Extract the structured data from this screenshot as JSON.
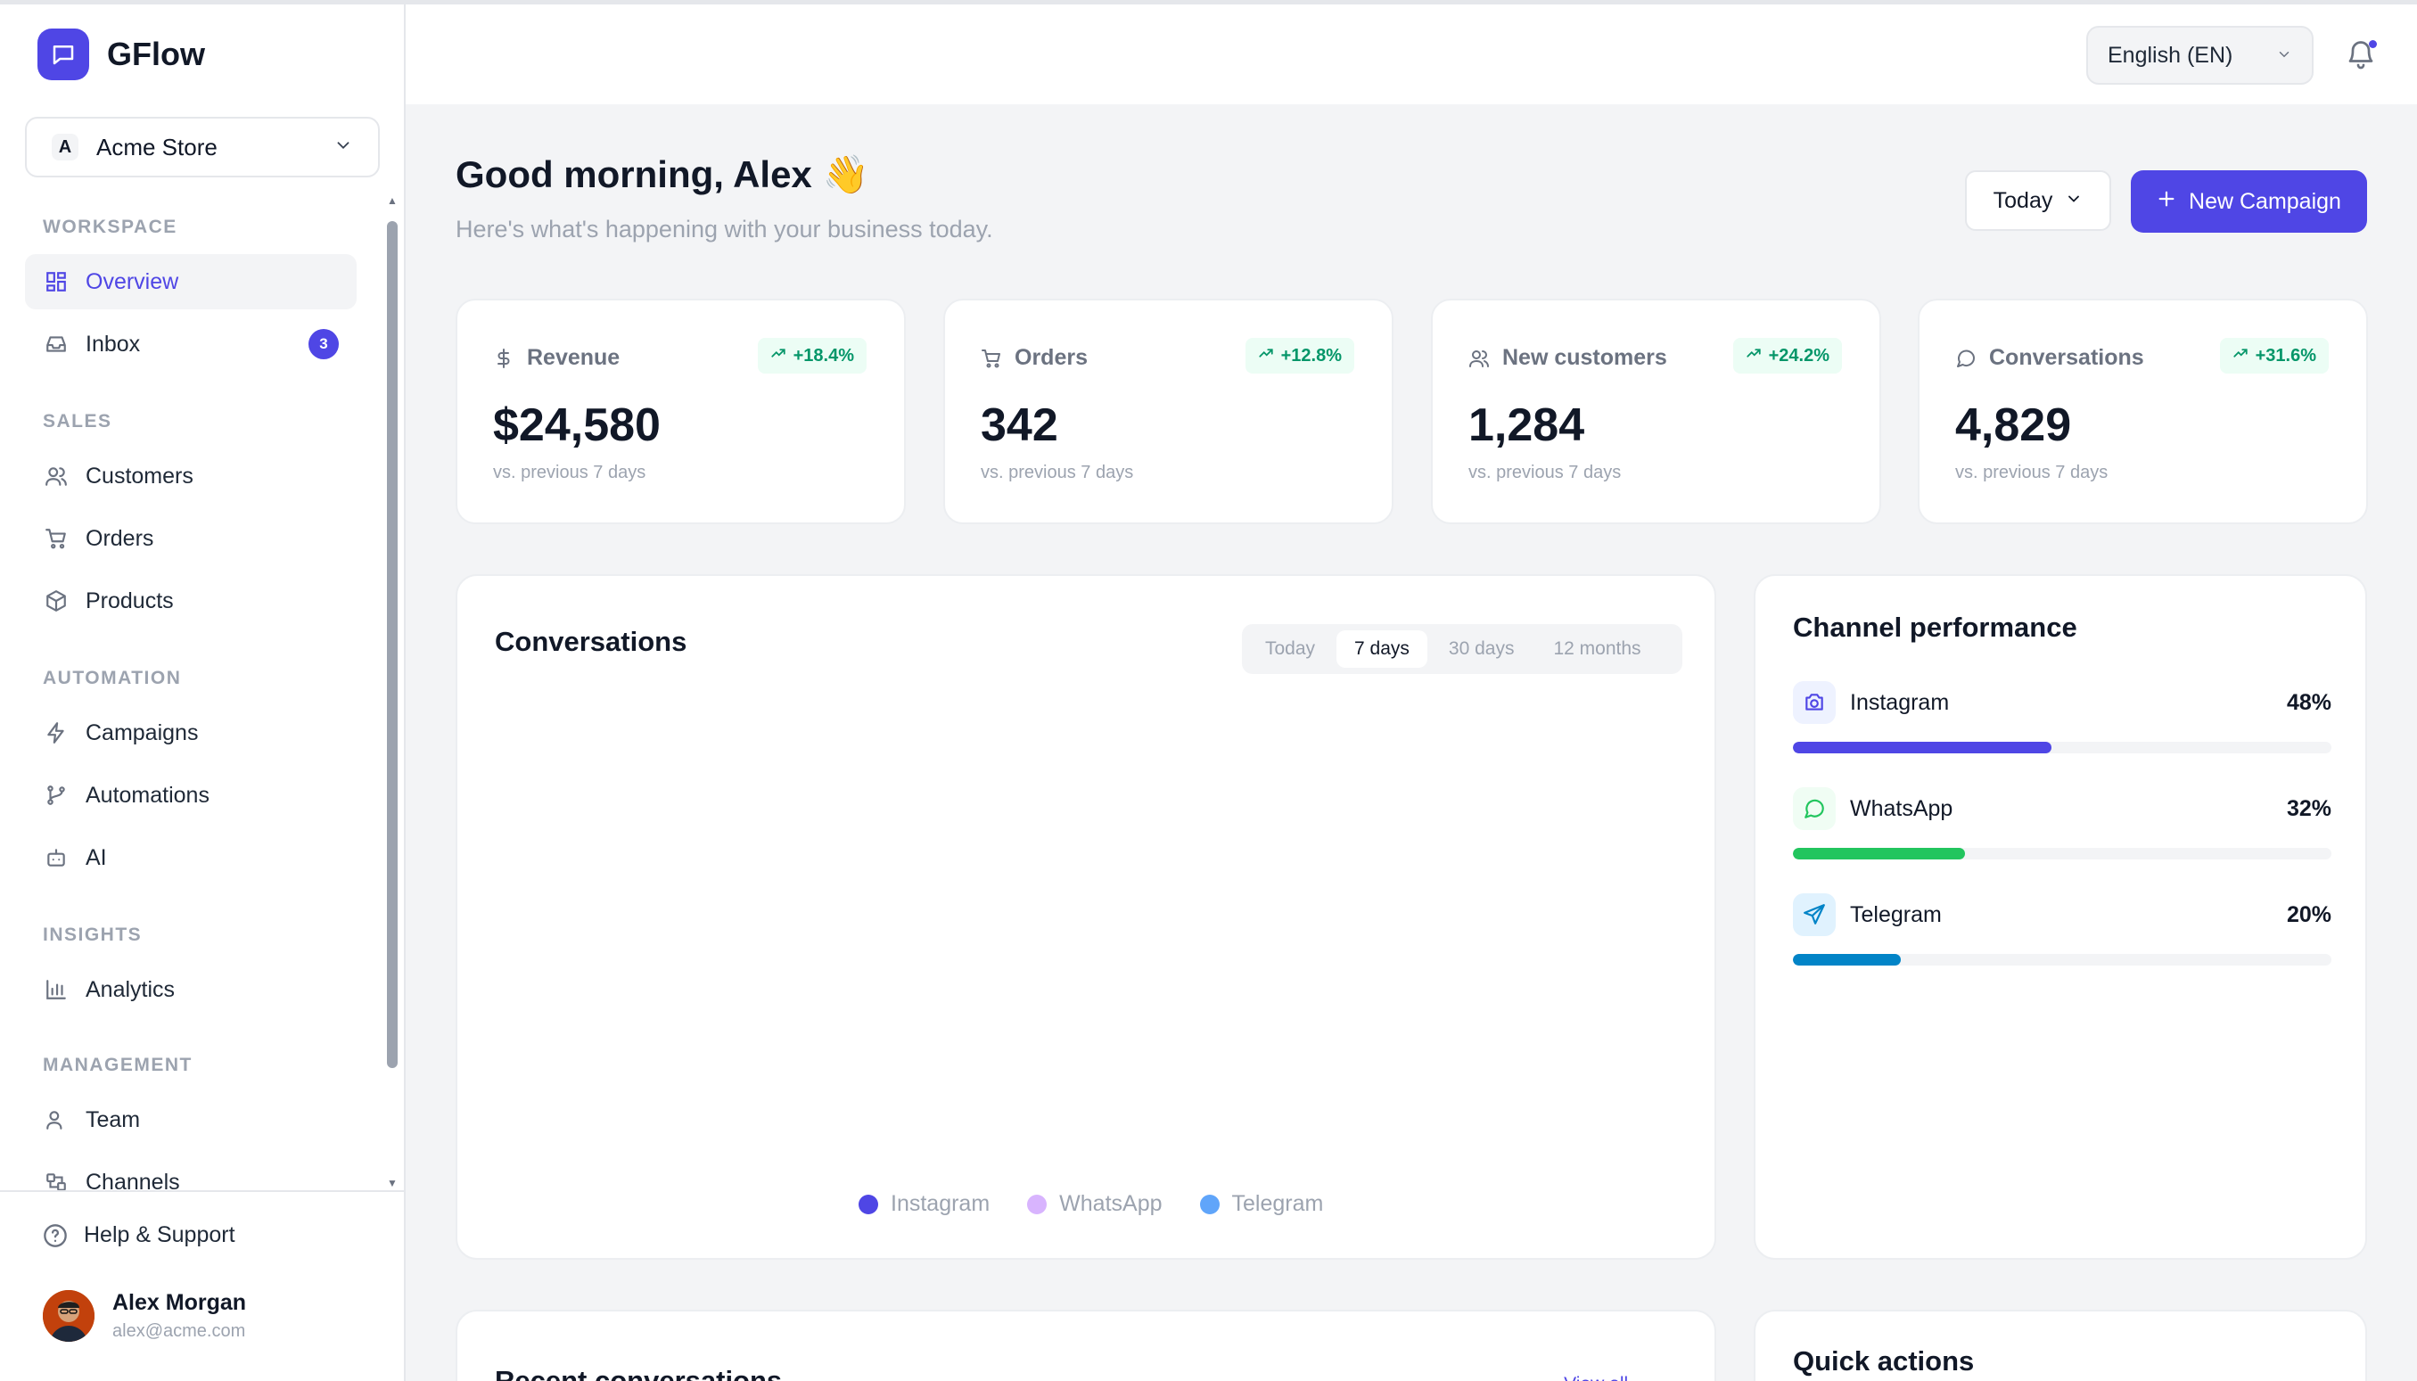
{
  "app": {
    "name": "GFlow"
  },
  "store": {
    "initial": "A",
    "name": "Acme Store"
  },
  "nav": {
    "sections": {
      "workspace": "WORKSPACE",
      "sales": "SALES",
      "automation": "AUTOMATION",
      "insights": "INSIGHTS",
      "management": "MANAGEMENT"
    },
    "items": {
      "overview": {
        "label": "Overview",
        "icon": "grid-icon",
        "active": true
      },
      "inbox": {
        "label": "Inbox",
        "icon": "inbox-icon",
        "badge": "3"
      },
      "customers": {
        "label": "Customers",
        "icon": "users-icon"
      },
      "orders": {
        "label": "Orders",
        "icon": "cart-icon"
      },
      "products": {
        "label": "Products",
        "icon": "box-icon"
      },
      "campaigns": {
        "label": "Campaigns",
        "icon": "lightning-icon"
      },
      "automations": {
        "label": "Automations",
        "icon": "branch-icon"
      },
      "ai": {
        "label": "AI",
        "icon": "bot-icon"
      },
      "analytics": {
        "label": "Analytics",
        "icon": "bar-chart-icon"
      },
      "team": {
        "label": "Team",
        "icon": "user-icon"
      },
      "channels": {
        "label": "Channels",
        "icon": "plug-icon"
      }
    }
  },
  "footer": {
    "help": "Help & Support",
    "user": {
      "name": "Alex Morgan",
      "email": "alex@acme.com"
    }
  },
  "header": {
    "language": "English (EN)"
  },
  "greeting": {
    "title": "Good morning, Alex 👋",
    "subtitle": "Here's what's happening with your business today."
  },
  "actions": {
    "period": "Today",
    "new_campaign": "New Campaign"
  },
  "stats": [
    {
      "label": "Revenue",
      "icon": "dollar-icon",
      "trend": "+18.4%",
      "value": "$24,580",
      "note": "vs. previous 7 days"
    },
    {
      "label": "Orders",
      "icon": "cart-icon",
      "trend": "+12.8%",
      "value": "342",
      "note": "vs. previous 7 days"
    },
    {
      "label": "New customers",
      "icon": "users-icon",
      "trend": "+24.2%",
      "value": "1,284",
      "note": "vs. previous 7 days"
    },
    {
      "label": "Conversations",
      "icon": "chat-icon",
      "trend": "+31.6%",
      "value": "4,829",
      "note": "vs. previous 7 days"
    }
  ],
  "conversations": {
    "title": "Conversations",
    "tabs": [
      "Today",
      "7 days",
      "30 days",
      "12 months"
    ],
    "active_tab": "7 days",
    "legend": [
      {
        "name": "Instagram",
        "color": "#4f46e5"
      },
      {
        "name": "WhatsApp",
        "color": "#d8b4fe"
      },
      {
        "name": "Telegram",
        "color": "#60a5fa"
      }
    ]
  },
  "channel_performance": {
    "title": "Channel performance",
    "channels": [
      {
        "name": "Instagram",
        "pct": "48%",
        "value": 0.48,
        "color": "#4f46e5",
        "icon": "camera-icon"
      },
      {
        "name": "WhatsApp",
        "pct": "32%",
        "value": 0.32,
        "color": "#22c55e",
        "icon": "whatsapp-icon"
      },
      {
        "name": "Telegram",
        "pct": "20%",
        "value": 0.2,
        "color": "#0284c7",
        "icon": "send-icon"
      }
    ]
  },
  "recent": {
    "title": "Recent conversations",
    "view_all": "View all →"
  },
  "quick_actions": {
    "title": "Quick actions"
  }
}
